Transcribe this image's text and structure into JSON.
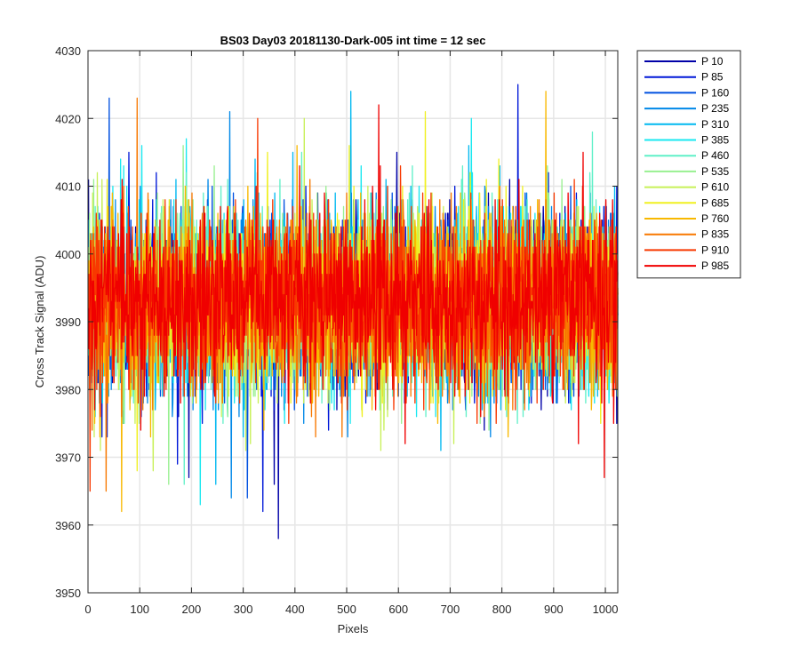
{
  "chart_data": {
    "type": "line",
    "title": "BS03 Day03 20181130-Dark-005 int time = 12 sec",
    "xlabel": "Pixels",
    "ylabel": "Cross Track Signal (ADU)",
    "xlim": [
      0,
      1024
    ],
    "ylim": [
      3950,
      4030
    ],
    "xticks": [
      0,
      100,
      200,
      300,
      400,
      500,
      600,
      700,
      800,
      900,
      1000
    ],
    "yticks": [
      3950,
      3960,
      3970,
      3980,
      3990,
      4000,
      4010,
      4020,
      4030
    ],
    "grid": true,
    "legend_position": "outside-top-right",
    "n_points": 1024,
    "series": [
      {
        "name": "P 10",
        "color": "#0000a8",
        "mean": 3993,
        "min": 3958,
        "max": 4015
      },
      {
        "name": "P 85",
        "color": "#0018d8",
        "mean": 3993,
        "min": 3962,
        "max": 4025
      },
      {
        "name": "P 160",
        "color": "#0050e0",
        "mean": 3993,
        "min": 3964,
        "max": 4023
      },
      {
        "name": "P 235",
        "color": "#0088e8",
        "mean": 3993,
        "min": 3964,
        "max": 4021
      },
      {
        "name": "P 310",
        "color": "#00b8f0",
        "mean": 3993,
        "min": 3966,
        "max": 4024
      },
      {
        "name": "P 385",
        "color": "#18e8f0",
        "mean": 3993,
        "min": 3963,
        "max": 4020
      },
      {
        "name": "P 460",
        "color": "#60f0c8",
        "mean": 3993,
        "min": 3966,
        "max": 4018
      },
      {
        "name": "P 535",
        "color": "#98f090",
        "mean": 3993,
        "min": 3966,
        "max": 4016
      },
      {
        "name": "P 610",
        "color": "#c8f058",
        "mean": 3993,
        "min": 3968,
        "max": 4020
      },
      {
        "name": "P 685",
        "color": "#f0f020",
        "mean": 3993,
        "min": 3968,
        "max": 4021
      },
      {
        "name": "P 760",
        "color": "#f8b800",
        "mean": 3993,
        "min": 3962,
        "max": 4024
      },
      {
        "name": "P 835",
        "color": "#f87800",
        "mean": 3993,
        "min": 3965,
        "max": 4023
      },
      {
        "name": "P 910",
        "color": "#f83800",
        "mean": 3993,
        "min": 3965,
        "max": 4020
      },
      {
        "name": "P 985",
        "color": "#f00000",
        "mean": 3993,
        "min": 3967,
        "max": 4022
      }
    ]
  }
}
